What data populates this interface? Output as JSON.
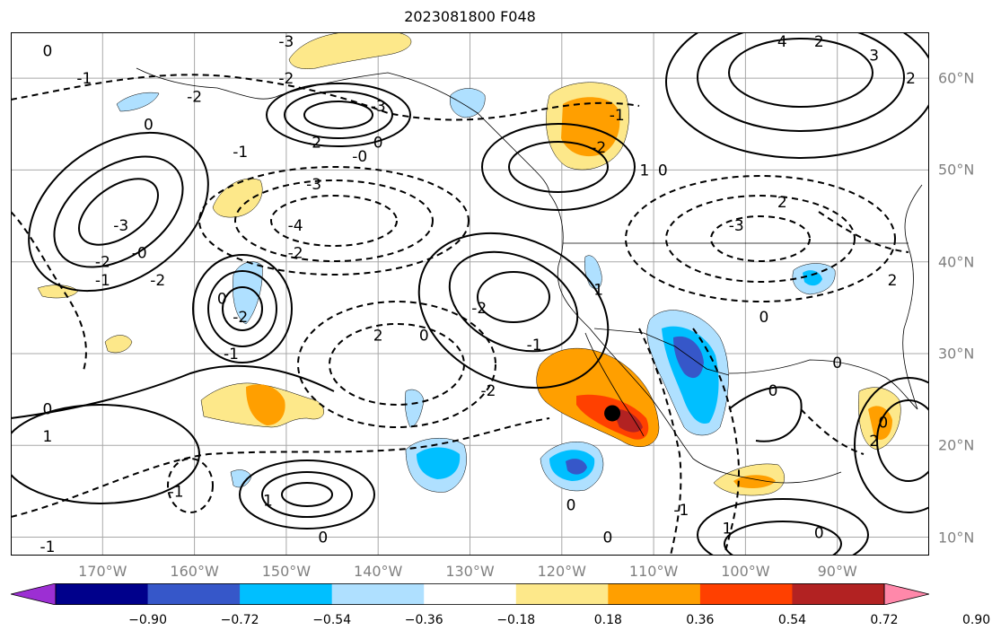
{
  "title": "2023081800 F048",
  "map": {
    "projection": "PlateCarree",
    "extent": {
      "lon_min": -180,
      "lon_max": -80,
      "lat_min": 8,
      "lat_max": 65
    },
    "lon_ticks": [
      "170°W",
      "160°W",
      "150°W",
      "140°W",
      "130°W",
      "120°W",
      "110°W",
      "100°W",
      "90°W"
    ],
    "lat_ticks": [
      "60°N",
      "50°N",
      "40°N",
      "30°N",
      "20°N",
      "10°N"
    ],
    "gridlines": true,
    "marker": {
      "type": "black-dot",
      "lon": -114.5,
      "lat": 23.5
    }
  },
  "contour_labels": [
    {
      "text": "0",
      "lon": -176,
      "lat": 63
    },
    {
      "text": "-1",
      "lon": -172,
      "lat": 60
    },
    {
      "text": "-3",
      "lon": -150,
      "lat": 64
    },
    {
      "text": "-2",
      "lon": -160,
      "lat": 58
    },
    {
      "text": "-2",
      "lon": -150,
      "lat": 60
    },
    {
      "text": "-3",
      "lon": -140,
      "lat": 57
    },
    {
      "text": "-2",
      "lon": -147,
      "lat": 53
    },
    {
      "text": "0",
      "lon": -140,
      "lat": 53
    },
    {
      "text": "-1",
      "lon": -155,
      "lat": 52
    },
    {
      "text": "-0",
      "lon": -142,
      "lat": 51.5
    },
    {
      "text": "-3",
      "lon": -147,
      "lat": 48.5
    },
    {
      "text": "-4",
      "lon": -149,
      "lat": 44
    },
    {
      "text": "-2",
      "lon": -149,
      "lat": 41
    },
    {
      "text": "0",
      "lon": -165,
      "lat": 55
    },
    {
      "text": "-3",
      "lon": -168,
      "lat": 44
    },
    {
      "text": "-2",
      "lon": -170,
      "lat": 40
    },
    {
      "text": "-0",
      "lon": -166,
      "lat": 41
    },
    {
      "text": "-1",
      "lon": -170,
      "lat": 38
    },
    {
      "text": "-2",
      "lon": -164,
      "lat": 38
    },
    {
      "text": "0",
      "lon": -157,
      "lat": 36
    },
    {
      "text": "-2",
      "lon": -155,
      "lat": 34
    },
    {
      "text": "-1",
      "lon": -156,
      "lat": 30
    },
    {
      "text": "2",
      "lon": -140,
      "lat": 32
    },
    {
      "text": "0",
      "lon": -135,
      "lat": 32
    },
    {
      "text": "-2",
      "lon": -129,
      "lat": 35
    },
    {
      "text": "-1",
      "lon": -123,
      "lat": 31
    },
    {
      "text": "1",
      "lon": -116,
      "lat": 37
    },
    {
      "text": "-2",
      "lon": -128,
      "lat": 26
    },
    {
      "text": "0",
      "lon": -176,
      "lat": 24
    },
    {
      "text": "1",
      "lon": -176,
      "lat": 21
    },
    {
      "text": "-1",
      "lon": -162,
      "lat": 15
    },
    {
      "text": "1",
      "lon": -152,
      "lat": 14
    },
    {
      "text": "0",
      "lon": -146,
      "lat": 10
    },
    {
      "text": "-1",
      "lon": -176,
      "lat": 9
    },
    {
      "text": "0",
      "lon": -119,
      "lat": 13.5
    },
    {
      "text": "0",
      "lon": -115,
      "lat": 10
    },
    {
      "text": "-1",
      "lon": -107,
      "lat": 13
    },
    {
      "text": "1",
      "lon": -102,
      "lat": 11
    },
    {
      "text": "0",
      "lon": -92,
      "lat": 10.5
    },
    {
      "text": "0",
      "lon": -109,
      "lat": 50
    },
    {
      "text": "1",
      "lon": -111,
      "lat": 50
    },
    {
      "text": "-1",
      "lon": -114,
      "lat": 56
    },
    {
      "text": "-2",
      "lon": -116,
      "lat": 52.5
    },
    {
      "text": "4",
      "lon": -96,
      "lat": 64
    },
    {
      "text": "2",
      "lon": -92,
      "lat": 64
    },
    {
      "text": "3",
      "lon": -86,
      "lat": 62.5
    },
    {
      "text": "2",
      "lon": -82,
      "lat": 60
    },
    {
      "text": "2",
      "lon": -96,
      "lat": 46.5
    },
    {
      "text": "-3",
      "lon": -101,
      "lat": 44
    },
    {
      "text": "2",
      "lon": -84,
      "lat": 38
    },
    {
      "text": "0",
      "lon": -98,
      "lat": 34
    },
    {
      "text": "0",
      "lon": -90,
      "lat": 29
    },
    {
      "text": "0",
      "lon": -97,
      "lat": 26
    },
    {
      "text": "0",
      "lon": -85,
      "lat": 22.5
    },
    {
      "text": "2",
      "lon": -86,
      "lat": 20.5
    }
  ],
  "colorbar": {
    "ticks": [
      "−0.90",
      "−0.72",
      "−0.54",
      "−0.36",
      "−0.18",
      "0.18",
      "0.36",
      "0.54",
      "0.72",
      "0.90"
    ],
    "colors": [
      "#9c2fd3",
      "#00008b",
      "#3657c9",
      "#00bfff",
      "#afe0ff",
      "#ffffff",
      "#fde88a",
      "#ff9f00",
      "#ff4000",
      "#b22222",
      "#ff88aa"
    ],
    "extend": "both"
  }
}
